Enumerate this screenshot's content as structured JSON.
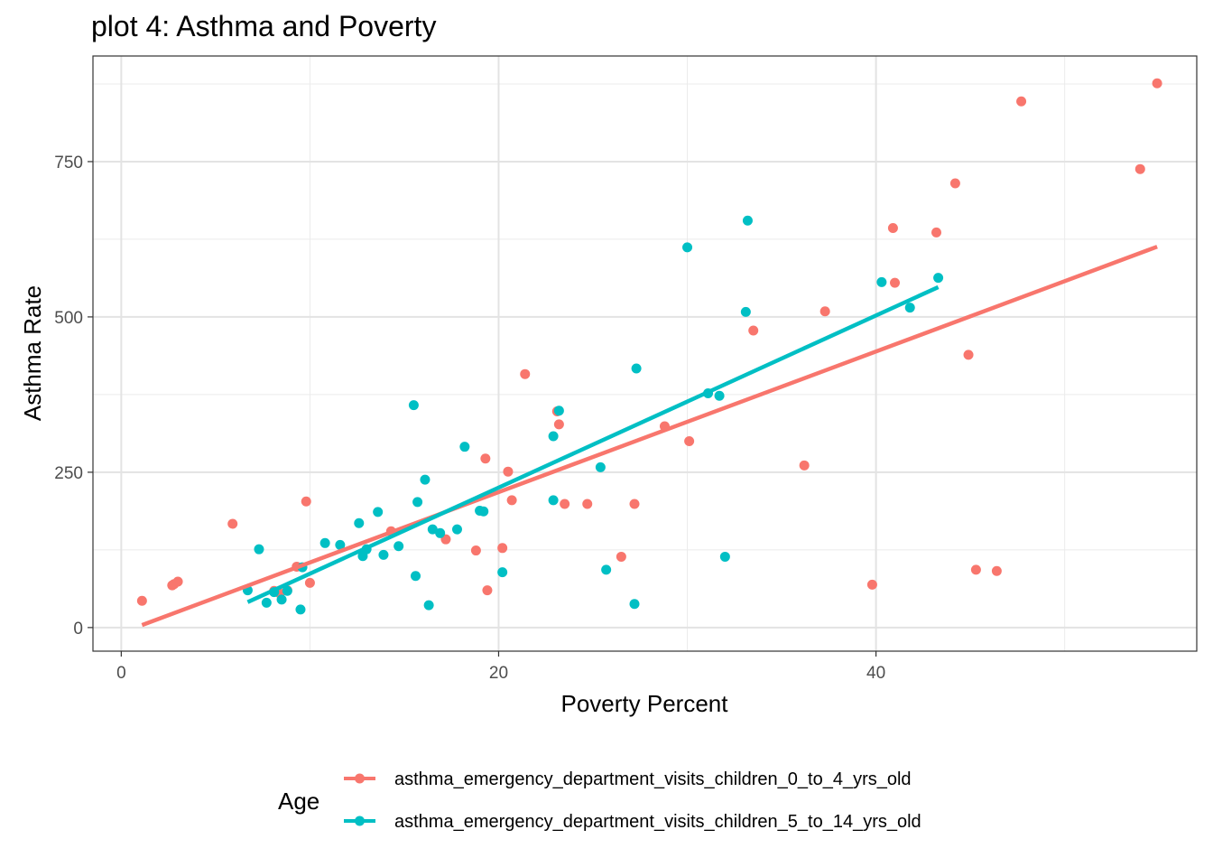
{
  "chart_data": {
    "type": "scatter",
    "title": "plot 4: Asthma and Poverty",
    "xlabel": "Poverty Percent",
    "ylabel": "Asthma Rate",
    "xlim": [
      -1.5,
      57
    ],
    "ylim": [
      -38,
      920
    ],
    "x_ticks": [
      0,
      20,
      40
    ],
    "y_ticks": [
      0,
      250,
      500,
      750
    ],
    "x_ticks_text": [
      "0",
      "20",
      "40"
    ],
    "y_ticks_text": [
      "0",
      "250",
      "500",
      "750"
    ],
    "grid": true,
    "legend": {
      "title": "Age",
      "position": "bottom"
    },
    "series": [
      {
        "name": "asthma_emergency_department_visits_children_0_to_4_yrs_old",
        "color": "#F8766D",
        "points": [
          [
            1.1,
            43
          ],
          [
            2.7,
            68
          ],
          [
            2.8,
            70
          ],
          [
            3.0,
            74
          ],
          [
            5.9,
            167
          ],
          [
            8.1,
            59
          ],
          [
            8.4,
            55
          ],
          [
            8.8,
            60
          ],
          [
            9.3,
            98
          ],
          [
            9.8,
            203
          ],
          [
            10.0,
            72
          ],
          [
            14.3,
            155
          ],
          [
            17.2,
            142
          ],
          [
            18.8,
            124
          ],
          [
            19.3,
            272
          ],
          [
            19.4,
            60
          ],
          [
            20.2,
            128
          ],
          [
            20.5,
            251
          ],
          [
            20.7,
            205
          ],
          [
            21.4,
            408
          ],
          [
            23.1,
            348
          ],
          [
            23.2,
            327
          ],
          [
            23.5,
            199
          ],
          [
            24.7,
            199
          ],
          [
            26.5,
            114
          ],
          [
            27.2,
            199
          ],
          [
            28.8,
            324
          ],
          [
            30.1,
            300
          ],
          [
            33.5,
            478
          ],
          [
            36.2,
            261
          ],
          [
            37.3,
            509
          ],
          [
            39.8,
            69
          ],
          [
            40.9,
            643
          ],
          [
            41.0,
            555
          ],
          [
            43.2,
            636
          ],
          [
            44.2,
            715
          ],
          [
            44.9,
            439
          ],
          [
            45.3,
            93
          ],
          [
            46.4,
            91
          ],
          [
            47.7,
            847
          ],
          [
            54.0,
            738
          ],
          [
            54.9,
            876
          ]
        ],
        "fit": [
          [
            1.1,
            4
          ],
          [
            54.9,
            613
          ]
        ]
      },
      {
        "name": "asthma_emergency_department_visits_children_5_to_14_yrs_old",
        "color": "#00BFC4",
        "points": [
          [
            6.7,
            60
          ],
          [
            7.3,
            126
          ],
          [
            7.7,
            40
          ],
          [
            8.1,
            57
          ],
          [
            8.5,
            45
          ],
          [
            8.8,
            59
          ],
          [
            9.5,
            29
          ],
          [
            9.6,
            97
          ],
          [
            10.8,
            136
          ],
          [
            11.6,
            133
          ],
          [
            12.6,
            168
          ],
          [
            12.8,
            115
          ],
          [
            13.0,
            126
          ],
          [
            13.6,
            186
          ],
          [
            13.9,
            117
          ],
          [
            14.7,
            131
          ],
          [
            15.5,
            358
          ],
          [
            15.6,
            83
          ],
          [
            15.7,
            202
          ],
          [
            16.1,
            238
          ],
          [
            16.3,
            36
          ],
          [
            16.5,
            158
          ],
          [
            16.9,
            152
          ],
          [
            17.8,
            158
          ],
          [
            18.2,
            291
          ],
          [
            19.0,
            188
          ],
          [
            19.2,
            187
          ],
          [
            20.2,
            89
          ],
          [
            22.9,
            205
          ],
          [
            22.9,
            308
          ],
          [
            23.2,
            349
          ],
          [
            25.4,
            258
          ],
          [
            25.7,
            93
          ],
          [
            27.2,
            38
          ],
          [
            27.3,
            417
          ],
          [
            30.0,
            612
          ],
          [
            31.1,
            377
          ],
          [
            31.7,
            373
          ],
          [
            32.0,
            114
          ],
          [
            33.1,
            508
          ],
          [
            33.2,
            655
          ],
          [
            40.3,
            556
          ],
          [
            41.8,
            515
          ],
          [
            43.3,
            563
          ]
        ],
        "fit": [
          [
            6.7,
            41
          ],
          [
            43.3,
            548
          ]
        ]
      }
    ]
  }
}
